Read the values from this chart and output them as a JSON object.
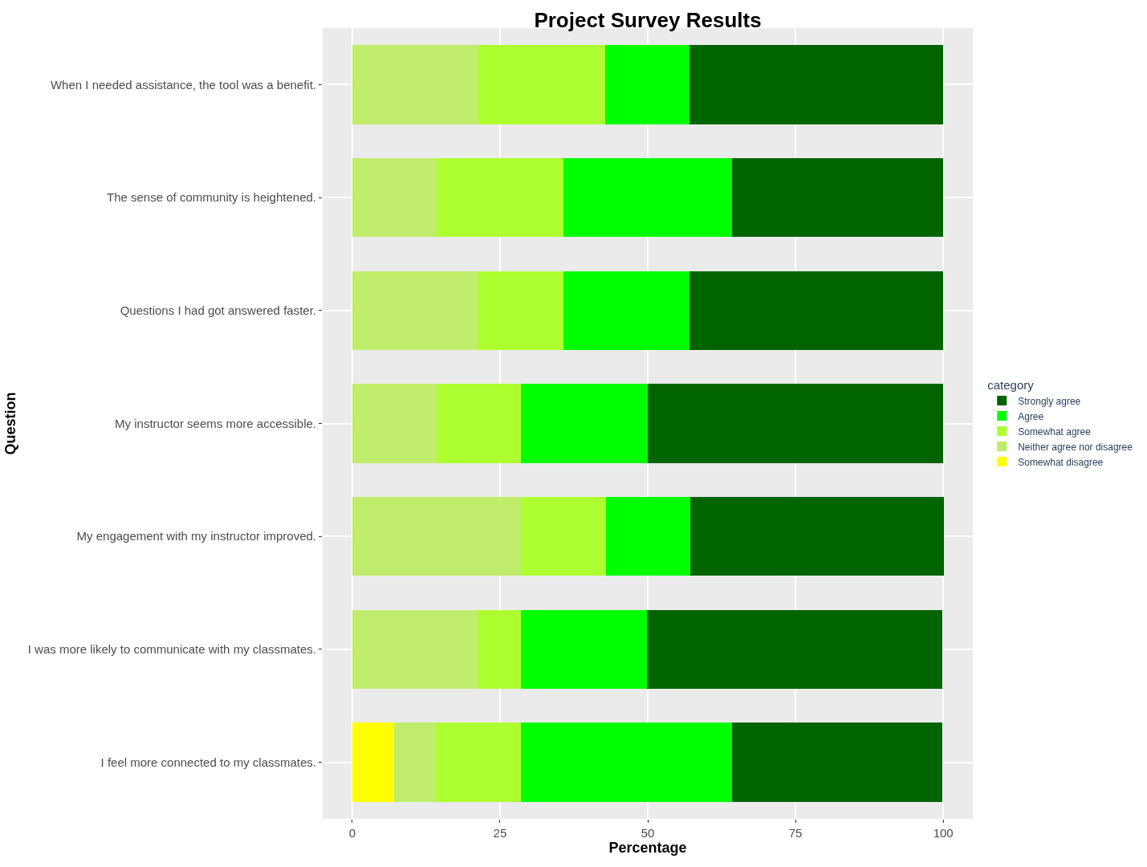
{
  "chart_data": {
    "type": "bar",
    "orientation": "horizontal",
    "stacked": true,
    "title": "Project Survey Results",
    "xlabel": "Percentage",
    "ylabel": "Question",
    "legend_title": "category",
    "legend": "right",
    "grid": true,
    "categories": [
      "When I needed assistance, the tool was a benefit.",
      "The sense of community is heightened.",
      "Questions I had got answered faster.",
      "My instructor seems more accessible.",
      "My engagement with my instructor improved.",
      "I was more likely to communicate with my classmates.",
      "I feel more connected to my classmates."
    ],
    "series": [
      {
        "name": "Somewhat disagree",
        "color": "#ffff00",
        "values": [
          0,
          0,
          0,
          0,
          0,
          0,
          7.1
        ]
      },
      {
        "name": "Neither agree nor disagree",
        "color": "#c0ec6b",
        "values": [
          21.4,
          14.3,
          21.4,
          14.3,
          28.6,
          21.4,
          7.1
        ]
      },
      {
        "name": "Somewhat agree",
        "color": "#adff2f",
        "values": [
          21.4,
          21.4,
          14.3,
          14.3,
          14.3,
          7.1,
          14.3
        ]
      },
      {
        "name": "Agree",
        "color": "#00ff00",
        "values": [
          14.3,
          28.6,
          21.4,
          21.4,
          14.3,
          21.4,
          35.7
        ]
      },
      {
        "name": "Strongly agree",
        "color": "#006400",
        "values": [
          42.9,
          35.7,
          42.9,
          50,
          42.9,
          50,
          35.7
        ]
      }
    ],
    "xlim": [
      -5,
      105
    ],
    "xticks": [
      0,
      25,
      50,
      75,
      100
    ]
  }
}
